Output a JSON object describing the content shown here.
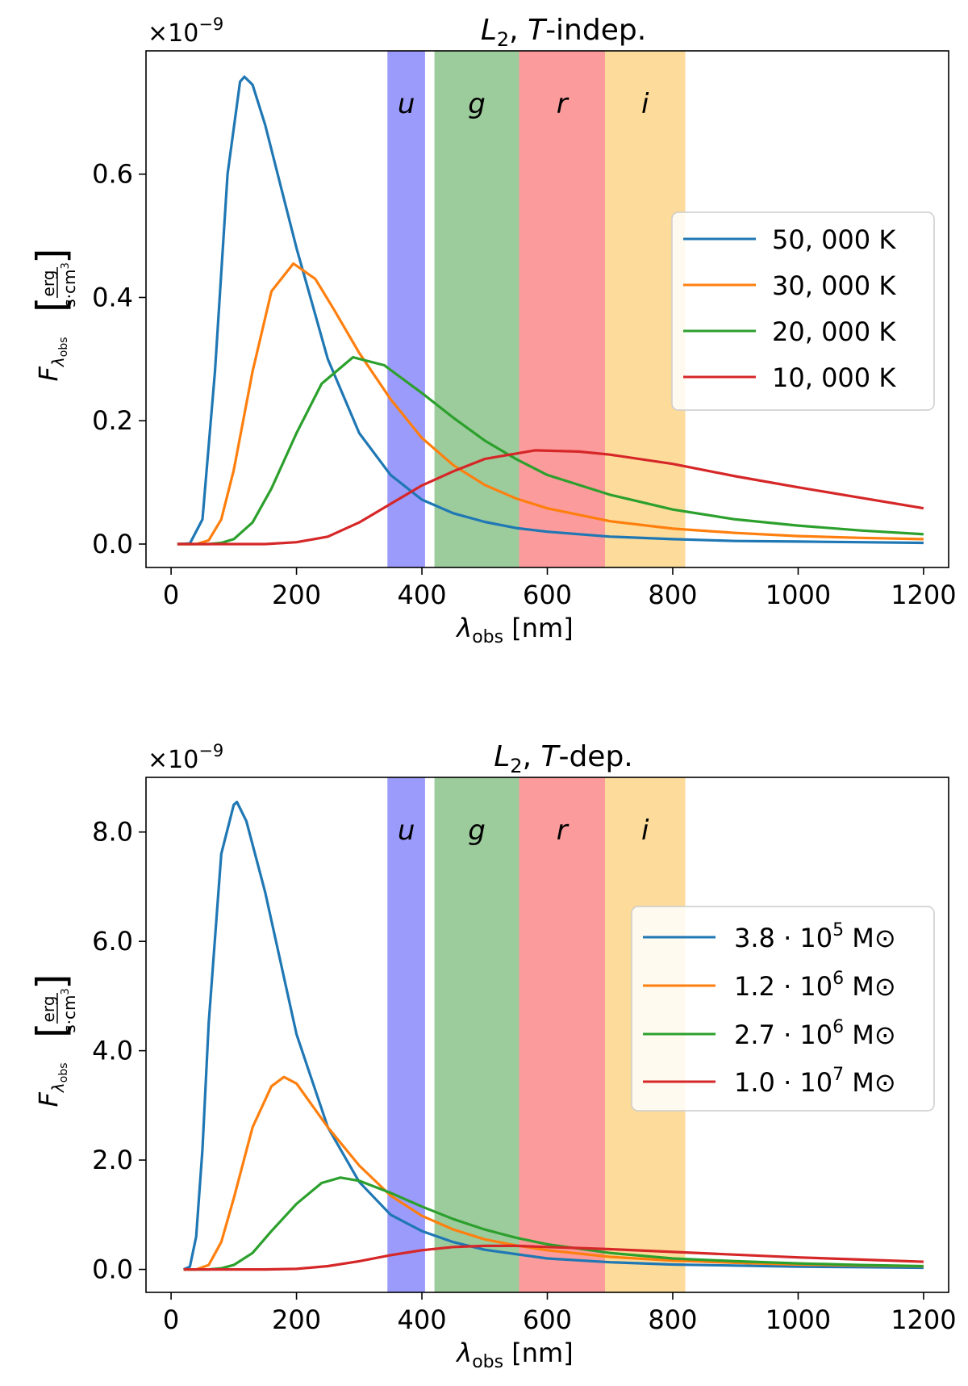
{
  "chart_data": [
    {
      "type": "line",
      "title": "L2, T-indep.",
      "title_parts": {
        "symbol": "L",
        "subscript": "2",
        "separator": ", ",
        "var": "T",
        "suffix": "-indep."
      },
      "multiplier_label": "×10−9",
      "multiplier_parts": {
        "base": "×10",
        "exponent": "−9"
      },
      "xlabel": "λobs [nm]",
      "xlabel_parts": {
        "symbol": "λ",
        "subscript": "obs",
        "unit": " [nm]"
      },
      "ylabel": "Fλobs [erg / (s·cm3)]",
      "ylabel_parts": {
        "symbol": "F",
        "subscript_symbol": "λ",
        "subscript_sub": "obs",
        "numerator": "erg",
        "denominator_base": "s·cm",
        "denominator_exp": "3"
      },
      "xlim": [
        -40,
        1240
      ],
      "ylim": [
        -0.038,
        0.8
      ],
      "x_ticks": [
        0,
        200,
        400,
        600,
        800,
        1000,
        1200
      ],
      "x_tick_labels": [
        "0",
        "200",
        "400",
        "600",
        "800",
        "1000",
        "1200"
      ],
      "y_ticks": [
        0.0,
        0.2,
        0.4,
        0.6
      ],
      "y_tick_labels": [
        "0.0",
        "0.2",
        "0.4",
        "0.6"
      ],
      "bands": [
        {
          "label": "u",
          "x0": 345,
          "x1": 405,
          "color": "#9b9bfb"
        },
        {
          "label": "g",
          "x0": 420,
          "x1": 555,
          "color": "#9ccb9c"
        },
        {
          "label": "r",
          "x0": 555,
          "x1": 692,
          "color": "#fb9b9b"
        },
        {
          "label": "i",
          "x0": 692,
          "x1": 820,
          "color": "#fcdb9b"
        }
      ],
      "legend_position": "center-right",
      "series": [
        {
          "name": "50, 000 K",
          "name_parts": {
            "main": "50, 000 K",
            "exp": ""
          },
          "color": "#1f77b4",
          "x": [
            10,
            30,
            50,
            70,
            90,
            110,
            117,
            130,
            150,
            175,
            200,
            250,
            300,
            350,
            400,
            450,
            500,
            550,
            600,
            700,
            800,
            900,
            1000,
            1100,
            1200
          ],
          "y": [
            0,
            0.001,
            0.04,
            0.28,
            0.6,
            0.75,
            0.758,
            0.745,
            0.68,
            0.58,
            0.48,
            0.3,
            0.18,
            0.112,
            0.072,
            0.05,
            0.036,
            0.026,
            0.02,
            0.012,
            0.008,
            0.005,
            0.004,
            0.003,
            0.002
          ]
        },
        {
          "name": "30, 000 K",
          "name_parts": {
            "main": "30, 000 K",
            "exp": ""
          },
          "color": "#ff7f0e",
          "x": [
            10,
            40,
            60,
            80,
            100,
            130,
            160,
            195,
            230,
            260,
            300,
            350,
            400,
            450,
            500,
            550,
            600,
            700,
            800,
            900,
            1000,
            1100,
            1200
          ],
          "y": [
            0,
            0.0,
            0.006,
            0.04,
            0.12,
            0.28,
            0.41,
            0.455,
            0.43,
            0.38,
            0.31,
            0.235,
            0.172,
            0.128,
            0.096,
            0.074,
            0.058,
            0.037,
            0.025,
            0.018,
            0.013,
            0.01,
            0.008
          ]
        },
        {
          "name": "20, 000 K",
          "name_parts": {
            "main": "20, 000 K",
            "exp": ""
          },
          "color": "#2ca02c",
          "x": [
            10,
            60,
            80,
            100,
            130,
            160,
            200,
            240,
            290,
            340,
            400,
            450,
            500,
            550,
            600,
            700,
            800,
            900,
            1000,
            1100,
            1200
          ],
          "y": [
            0,
            0.0,
            0.002,
            0.008,
            0.035,
            0.09,
            0.18,
            0.26,
            0.303,
            0.29,
            0.245,
            0.205,
            0.168,
            0.138,
            0.112,
            0.08,
            0.056,
            0.04,
            0.03,
            0.022,
            0.016
          ]
        },
        {
          "name": "10, 000 K",
          "name_parts": {
            "main": "10, 000 K",
            "exp": ""
          },
          "color": "#d62728",
          "x": [
            10,
            100,
            150,
            200,
            250,
            300,
            350,
            400,
            450,
            500,
            580,
            650,
            700,
            800,
            900,
            1000,
            1100,
            1200
          ],
          "y": [
            0,
            0.0,
            0.0,
            0.003,
            0.012,
            0.035,
            0.065,
            0.095,
            0.118,
            0.138,
            0.152,
            0.15,
            0.145,
            0.13,
            0.11,
            0.092,
            0.075,
            0.058
          ]
        }
      ]
    },
    {
      "type": "line",
      "title": "L2, T-dep.",
      "title_parts": {
        "symbol": "L",
        "subscript": "2",
        "separator": ", ",
        "var": "T",
        "suffix": "-dep."
      },
      "multiplier_label": "×10−9",
      "multiplier_parts": {
        "base": "×10",
        "exponent": "−9"
      },
      "xlabel": "λobs [nm]",
      "xlabel_parts": {
        "symbol": "λ",
        "subscript": "obs",
        "unit": " [nm]"
      },
      "ylabel": "Fλobs [erg / (s·cm3)]",
      "ylabel_parts": {
        "symbol": "F",
        "subscript_symbol": "λ",
        "subscript_sub": "obs",
        "numerator": "erg",
        "denominator_base": "s·cm",
        "denominator_exp": "3"
      },
      "xlim": [
        -40,
        1240
      ],
      "ylim": [
        -0.42,
        9.0
      ],
      "x_ticks": [
        0,
        200,
        400,
        600,
        800,
        1000,
        1200
      ],
      "x_tick_labels": [
        "0",
        "200",
        "400",
        "600",
        "800",
        "1000",
        "1200"
      ],
      "y_ticks": [
        0.0,
        2.0,
        4.0,
        6.0,
        8.0
      ],
      "y_tick_labels": [
        "0.0",
        "2.0",
        "4.0",
        "6.0",
        "8.0"
      ],
      "bands": [
        {
          "label": "u",
          "x0": 345,
          "x1": 405,
          "color": "#9b9bfb"
        },
        {
          "label": "g",
          "x0": 420,
          "x1": 555,
          "color": "#9ccb9c"
        },
        {
          "label": "r",
          "x0": 555,
          "x1": 692,
          "color": "#fb9b9b"
        },
        {
          "label": "i",
          "x0": 692,
          "x1": 820,
          "color": "#fcdb9b"
        }
      ],
      "legend_position": "center-right",
      "series": [
        {
          "name": "3.8 · 10^5 M⊙",
          "name_parts": {
            "main": "3.8 · 10",
            "exp": "5",
            "unit": " M⊙"
          },
          "color": "#1f77b4",
          "x": [
            20,
            30,
            40,
            50,
            60,
            80,
            100,
            105,
            120,
            150,
            200,
            250,
            300,
            350,
            400,
            450,
            500,
            600,
            700,
            800,
            900,
            1000,
            1100,
            1200
          ],
          "y": [
            0,
            0.05,
            0.6,
            2.2,
            4.5,
            7.6,
            8.5,
            8.55,
            8.2,
            6.9,
            4.3,
            2.6,
            1.6,
            1.0,
            0.7,
            0.5,
            0.36,
            0.2,
            0.13,
            0.09,
            0.07,
            0.05,
            0.04,
            0.03
          ]
        },
        {
          "name": "1.2 · 10^6 M⊙",
          "name_parts": {
            "main": "1.2 · 10",
            "exp": "6",
            "unit": " M⊙"
          },
          "color": "#ff7f0e",
          "x": [
            20,
            40,
            60,
            80,
            100,
            130,
            160,
            180,
            200,
            250,
            300,
            350,
            400,
            450,
            500,
            550,
            600,
            700,
            800,
            900,
            1000,
            1100,
            1200
          ],
          "y": [
            0,
            0.0,
            0.08,
            0.5,
            1.3,
            2.6,
            3.35,
            3.52,
            3.4,
            2.6,
            1.9,
            1.35,
            0.98,
            0.73,
            0.55,
            0.44,
            0.35,
            0.23,
            0.16,
            0.12,
            0.09,
            0.07,
            0.055
          ]
        },
        {
          "name": "2.7 · 10^6 M⊙",
          "name_parts": {
            "main": "2.7 · 10",
            "exp": "6",
            "unit": " M⊙"
          },
          "color": "#2ca02c",
          "x": [
            20,
            60,
            80,
            100,
            130,
            160,
            200,
            240,
            270,
            300,
            350,
            400,
            450,
            500,
            550,
            600,
            700,
            800,
            900,
            1000,
            1100,
            1200
          ],
          "y": [
            0,
            0.0,
            0.02,
            0.08,
            0.3,
            0.7,
            1.2,
            1.58,
            1.68,
            1.62,
            1.4,
            1.15,
            0.92,
            0.73,
            0.58,
            0.46,
            0.3,
            0.2,
            0.15,
            0.11,
            0.08,
            0.06
          ]
        },
        {
          "name": "1.0 · 10^7 M⊙",
          "name_parts": {
            "main": "1.0 · 10",
            "exp": "7",
            "unit": " M⊙"
          },
          "color": "#d62728",
          "x": [
            20,
            150,
            200,
            250,
            300,
            350,
            400,
            450,
            500,
            550,
            600,
            650,
            700,
            800,
            900,
            1000,
            1100,
            1200
          ],
          "y": [
            0,
            0.0,
            0.01,
            0.06,
            0.15,
            0.26,
            0.35,
            0.41,
            0.43,
            0.43,
            0.41,
            0.39,
            0.37,
            0.32,
            0.27,
            0.22,
            0.18,
            0.14
          ]
        }
      ]
    }
  ]
}
